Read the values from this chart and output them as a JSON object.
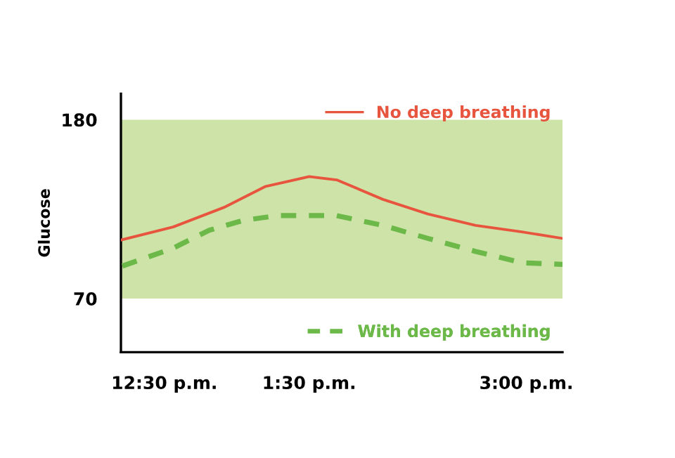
{
  "chart_data": {
    "type": "line",
    "ylabel": "Glucose",
    "xlim": [
      12.2,
      15.25
    ],
    "xticks": [
      {
        "value": 12.5,
        "label": "12:30 p.m."
      },
      {
        "value": 13.5,
        "label": "1:30 p.m."
      },
      {
        "value": 15,
        "label": "3:00 p.m."
      }
    ],
    "ylim": [
      37,
      196
    ],
    "yticks": [
      70,
      180
    ],
    "grid": false,
    "legend": "right",
    "bands": [
      {
        "axis": "y",
        "from": 70,
        "to": 180,
        "color": "#cde3a7"
      }
    ],
    "series": [
      {
        "name": "No deep breathing",
        "color": "#e8553f",
        "line_style": "solid",
        "x": [
          12.2,
          12.56,
          12.91,
          13.2,
          13.5,
          13.69,
          14.01,
          14.32,
          14.65,
          14.97,
          15.25
        ],
        "values": [
          106,
          114,
          126,
          139,
          145,
          143,
          131,
          122,
          115,
          111,
          107
        ]
      },
      {
        "name": "With deep breathing",
        "color": "#6cb94a",
        "line_style": "dashed",
        "x": [
          12.21,
          12.56,
          12.81,
          13.04,
          13.28,
          13.5,
          13.69,
          14.01,
          14.32,
          14.65,
          14.97,
          15.25
        ],
        "values": [
          90,
          101,
          112,
          118,
          121,
          121,
          121,
          115,
          107,
          99,
          92,
          91
        ]
      }
    ]
  }
}
